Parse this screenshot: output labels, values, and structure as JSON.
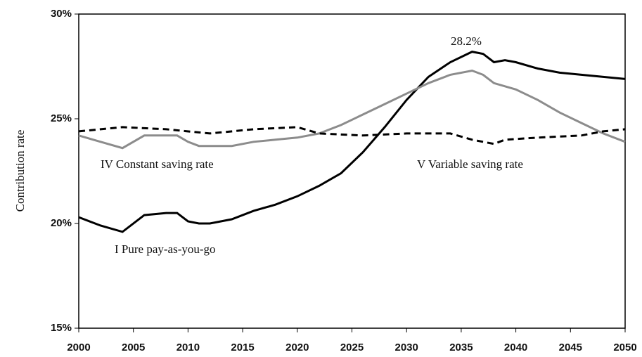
{
  "chart_data": {
    "type": "line",
    "y_label": "Contribution rate",
    "xlim": [
      2000,
      2050
    ],
    "xticks": [
      2000,
      2005,
      2010,
      2015,
      2020,
      2025,
      2030,
      2035,
      2040,
      2045,
      2050
    ],
    "ylim": [
      15,
      30
    ],
    "yticks": [
      {
        "value": 15,
        "label": "15%"
      },
      {
        "value": 20,
        "label": "20%"
      },
      {
        "value": 25,
        "label": "25%"
      },
      {
        "value": 30,
        "label": "30%"
      }
    ],
    "grid": false,
    "annotations": [
      "28.2%"
    ],
    "series": [
      {
        "name": "I Pure pay-as-you-go",
        "color": "#000000",
        "dash": "solid",
        "x": [
          2000,
          2002,
          2004,
          2006,
          2008,
          2009,
          2010,
          2011,
          2012,
          2014,
          2016,
          2018,
          2020,
          2022,
          2024,
          2026,
          2028,
          2030,
          2032,
          2034,
          2036,
          2037,
          2038,
          2039,
          2040,
          2042,
          2044,
          2046,
          2048,
          2050
        ],
        "values": [
          20.3,
          19.9,
          19.6,
          20.4,
          20.5,
          20.5,
          20.1,
          20.0,
          20.0,
          20.2,
          20.6,
          20.9,
          21.3,
          21.8,
          22.4,
          23.4,
          24.6,
          25.9,
          27.0,
          27.7,
          28.2,
          28.1,
          27.7,
          27.8,
          27.7,
          27.4,
          27.2,
          27.1,
          27.0,
          26.9
        ]
      },
      {
        "name": "IV Constant saving rate",
        "color": "#8c8c8c",
        "dash": "solid",
        "x": [
          2000,
          2002,
          2004,
          2006,
          2008,
          2009,
          2010,
          2011,
          2012,
          2014,
          2016,
          2018,
          2020,
          2022,
          2024,
          2026,
          2028,
          2030,
          2032,
          2034,
          2036,
          2037,
          2038,
          2040,
          2042,
          2044,
          2046,
          2048,
          2050
        ],
        "values": [
          24.2,
          23.9,
          23.6,
          24.2,
          24.2,
          24.2,
          23.9,
          23.7,
          23.7,
          23.7,
          23.9,
          24.0,
          24.1,
          24.3,
          24.7,
          25.2,
          25.7,
          26.2,
          26.7,
          27.1,
          27.3,
          27.1,
          26.7,
          26.4,
          25.9,
          25.3,
          24.8,
          24.3,
          23.9
        ]
      },
      {
        "name": "V Variable saving rate",
        "color": "#000000",
        "dash": "dashed",
        "x": [
          2000,
          2004,
          2008,
          2012,
          2016,
          2020,
          2022,
          2026,
          2030,
          2034,
          2036,
          2038,
          2039,
          2042,
          2046,
          2048,
          2050
        ],
        "values": [
          24.4,
          24.6,
          24.5,
          24.3,
          24.5,
          24.6,
          24.3,
          24.2,
          24.3,
          24.3,
          24.0,
          23.8,
          24.0,
          24.1,
          24.2,
          24.4,
          24.5
        ]
      }
    ]
  }
}
